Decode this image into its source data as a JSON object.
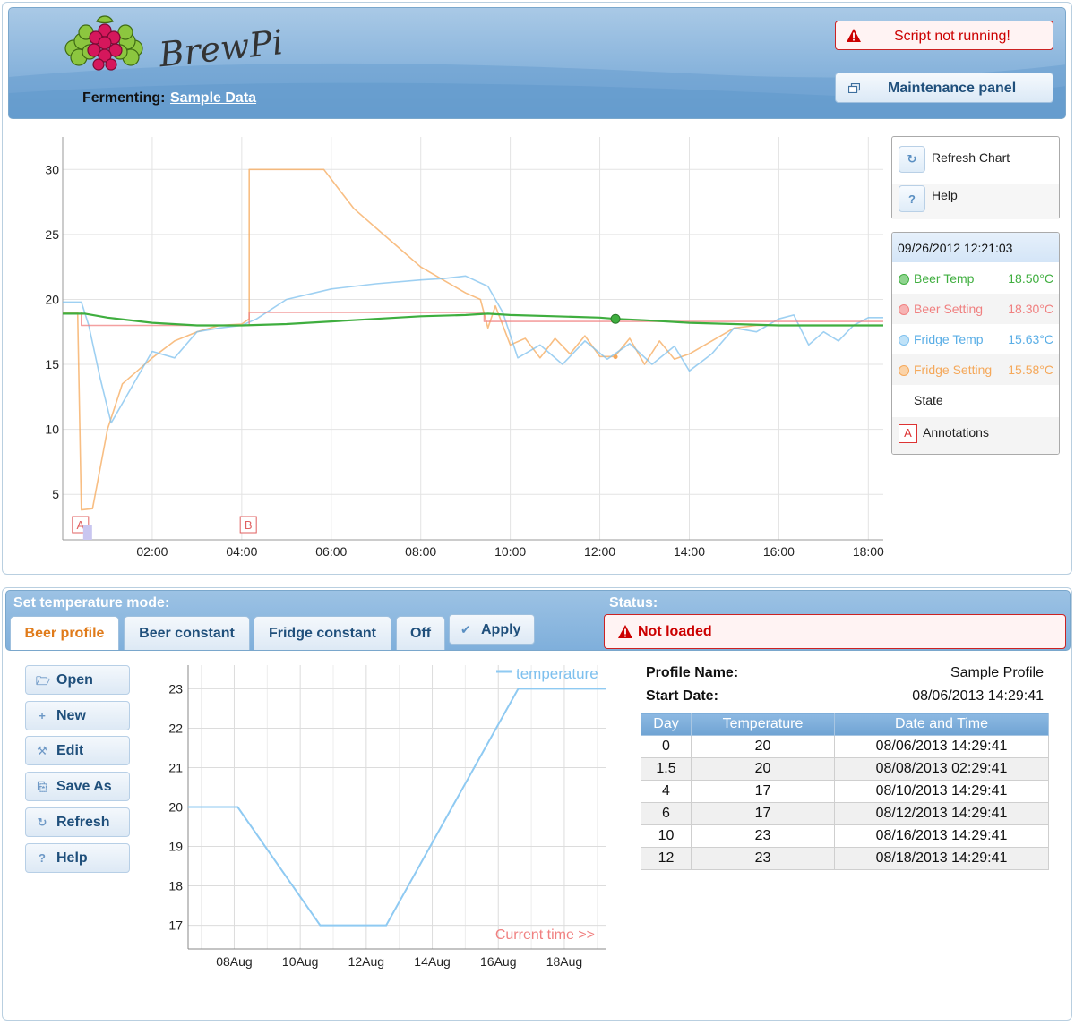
{
  "header": {
    "fermenting_label": "Fermenting:",
    "fermenting_name": "Sample Data",
    "script_alert": "Script not running!",
    "maintenance_label": "Maintenance panel",
    "logo_icon": "raspberry-logo-icon",
    "logo_text": "BrewPi"
  },
  "chart_controls": {
    "refresh_label": "Refresh Chart",
    "help_label": "Help"
  },
  "legend": {
    "date": "09/26/2012 12:21:03",
    "items": [
      {
        "name": "Beer Temp",
        "value": "18.50°C",
        "color": "#3fae3f"
      },
      {
        "name": "Beer Setting",
        "value": "18.30°C",
        "color": "#f08080"
      },
      {
        "name": "Fridge Temp",
        "value": "15.63°C",
        "color": "#7ec0ee"
      },
      {
        "name": "Fridge Setting",
        "value": "15.58°C",
        "color": "#f5a85a"
      }
    ],
    "state_label": "State",
    "annotations_label": "Annotations",
    "annotations_icon_text": "A"
  },
  "mode": {
    "title": "Set temperature mode:",
    "status_title": "Status:",
    "tabs": [
      {
        "label": "Beer profile",
        "active": true
      },
      {
        "label": "Beer constant",
        "active": false
      },
      {
        "label": "Fridge constant",
        "active": false
      },
      {
        "label": "Off",
        "active": false
      }
    ],
    "apply_label": "Apply",
    "status_text": "Not loaded"
  },
  "profile_buttons": [
    {
      "label": "Open",
      "icon": "folder-open-icon"
    },
    {
      "label": "New",
      "icon": "plus-icon"
    },
    {
      "label": "Edit",
      "icon": "wrench-icon"
    },
    {
      "label": "Save As",
      "icon": "copy-icon"
    },
    {
      "label": "Refresh",
      "icon": "refresh-icon"
    },
    {
      "label": "Help",
      "icon": "question-icon"
    }
  ],
  "profile_info": {
    "name_label": "Profile Name:",
    "name_value": "Sample Profile",
    "start_label": "Start Date:",
    "start_value": "08/06/2013 14:29:41"
  },
  "profile_table": {
    "headers": [
      "Day",
      "Temperature",
      "Date and Time"
    ],
    "rows": [
      [
        "0",
        "20",
        "08/06/2013 14:29:41"
      ],
      [
        "1.5",
        "20",
        "08/08/2013 02:29:41"
      ],
      [
        "4",
        "17",
        "08/10/2013 14:29:41"
      ],
      [
        "6",
        "17",
        "08/12/2013 14:29:41"
      ],
      [
        "10",
        "23",
        "08/16/2013 14:29:41"
      ],
      [
        "12",
        "23",
        "08/18/2013 14:29:41"
      ]
    ]
  },
  "chart_data": [
    {
      "type": "line",
      "x_tick_labels": [
        "02:00",
        "04:00",
        "06:00",
        "08:00",
        "10:00",
        "12:00",
        "14:00",
        "16:00",
        "18:00"
      ],
      "y_tick_labels": [
        "5",
        "10",
        "15",
        "20",
        "25",
        "30"
      ],
      "xlim": [
        "00:00",
        "18:20"
      ],
      "ylim": [
        1.5,
        32.5
      ],
      "grid": true,
      "annotations": [
        {
          "label": "A",
          "x": "00:25"
        },
        {
          "label": "B",
          "x": "04:10"
        }
      ],
      "hover_x": "12:21",
      "series": [
        {
          "name": "Beer Temp",
          "color": "#3fae3f",
          "x": [
            "00:00",
            "00:30",
            "01:00",
            "02:00",
            "03:00",
            "04:00",
            "05:00",
            "06:00",
            "07:00",
            "08:00",
            "09:00",
            "09:30",
            "10:00",
            "11:00",
            "12:00",
            "12:21",
            "13:00",
            "14:00",
            "15:00",
            "16:00",
            "17:00",
            "18:00",
            "18:20"
          ],
          "y": [
            18.9,
            18.9,
            18.6,
            18.2,
            18.0,
            18.0,
            18.1,
            18.3,
            18.5,
            18.7,
            18.8,
            18.9,
            18.8,
            18.7,
            18.6,
            18.5,
            18.4,
            18.2,
            18.1,
            18.0,
            18.0,
            18.0,
            18.0
          ]
        },
        {
          "name": "Beer Setting",
          "color": "#f08080",
          "x": [
            "00:25",
            "00:25",
            "04:10",
            "04:10",
            "09:25",
            "09:25",
            "18:20"
          ],
          "y": [
            19.0,
            18.0,
            18.0,
            19.0,
            19.0,
            18.3,
            18.3
          ]
        },
        {
          "name": "Fridge Temp",
          "color": "#7ec0ee",
          "x": [
            "00:00",
            "00:25",
            "00:35",
            "00:50",
            "01:05",
            "01:30",
            "02:00",
            "02:30",
            "03:00",
            "03:30",
            "04:00",
            "04:20",
            "05:00",
            "06:00",
            "07:00",
            "08:00",
            "08:30",
            "09:00",
            "09:30",
            "09:50",
            "10:10",
            "10:40",
            "11:10",
            "11:40",
            "12:10",
            "12:40",
            "13:10",
            "13:40",
            "14:00",
            "14:30",
            "15:00",
            "15:30",
            "16:00",
            "16:20",
            "16:40",
            "17:00",
            "17:20",
            "17:40",
            "18:00",
            "18:20"
          ],
          "y": [
            19.8,
            19.8,
            18.0,
            14.0,
            10.5,
            13.0,
            16.0,
            15.5,
            17.5,
            17.8,
            18.0,
            18.5,
            20.0,
            20.8,
            21.2,
            21.5,
            21.6,
            21.8,
            21.0,
            19.0,
            15.5,
            16.5,
            15.0,
            16.8,
            15.4,
            16.6,
            15.0,
            16.4,
            14.5,
            15.8,
            17.8,
            17.5,
            18.5,
            18.8,
            16.5,
            17.5,
            16.8,
            18.0,
            18.6,
            18.6
          ]
        },
        {
          "name": "Fridge Setting",
          "color": "#f5a85a",
          "x": [
            "00:00",
            "00:20",
            "00:25",
            "00:40",
            "01:00",
            "01:20",
            "01:40",
            "02:00",
            "02:30",
            "03:00",
            "03:30",
            "04:00",
            "04:10",
            "04:10",
            "05:00",
            "05:50",
            "06:10",
            "06:30",
            "07:00",
            "07:30",
            "08:00",
            "08:30",
            "09:00",
            "09:20",
            "09:30",
            "09:40",
            "10:00",
            "10:20",
            "10:40",
            "11:00",
            "11:20",
            "11:40",
            "12:00",
            "12:20",
            "12:40",
            "13:00",
            "13:20",
            "13:40",
            "14:00",
            "14:30",
            "15:00",
            "15:30",
            "16:00",
            "16:30",
            "17:00",
            "18:00",
            "18:20"
          ],
          "y": [
            19.0,
            19.0,
            3.8,
            3.9,
            10.0,
            13.5,
            14.5,
            15.5,
            16.8,
            17.5,
            18.0,
            18.1,
            18.5,
            30.0,
            30.0,
            30.0,
            28.5,
            27.0,
            25.5,
            24.0,
            22.5,
            21.5,
            20.5,
            20.0,
            17.8,
            19.5,
            16.5,
            17.0,
            15.5,
            17.0,
            15.8,
            17.2,
            15.6,
            15.6,
            17.0,
            15.0,
            16.8,
            15.4,
            15.8,
            16.8,
            17.8,
            18.0,
            18.0,
            18.0,
            18.0,
            18.0,
            18.0
          ]
        }
      ]
    },
    {
      "type": "line",
      "x_tick_labels": [
        "08Aug",
        "10Aug",
        "12Aug",
        "14Aug",
        "16Aug",
        "18Aug"
      ],
      "y_tick_labels": [
        "17",
        "18",
        "19",
        "20",
        "21",
        "22",
        "23"
      ],
      "xlim": [
        "08/06/2013 14:29",
        "08/19/2013 06:00"
      ],
      "ylim": [
        16.4,
        23.6
      ],
      "grid": true,
      "legend": "top-right",
      "annotation": "Current time >>",
      "series": [
        {
          "name": "temperature",
          "color": "#8fcaf2",
          "x": [
            "08/06/2013 14:29",
            "08/08/2013 02:29",
            "08/10/2013 14:29",
            "08/12/2013 14:29",
            "08/16/2013 14:29",
            "08/18/2013 14:29",
            "08/19/2013 06:00"
          ],
          "y": [
            20,
            20,
            17,
            17,
            23,
            23,
            23
          ]
        }
      ]
    }
  ]
}
